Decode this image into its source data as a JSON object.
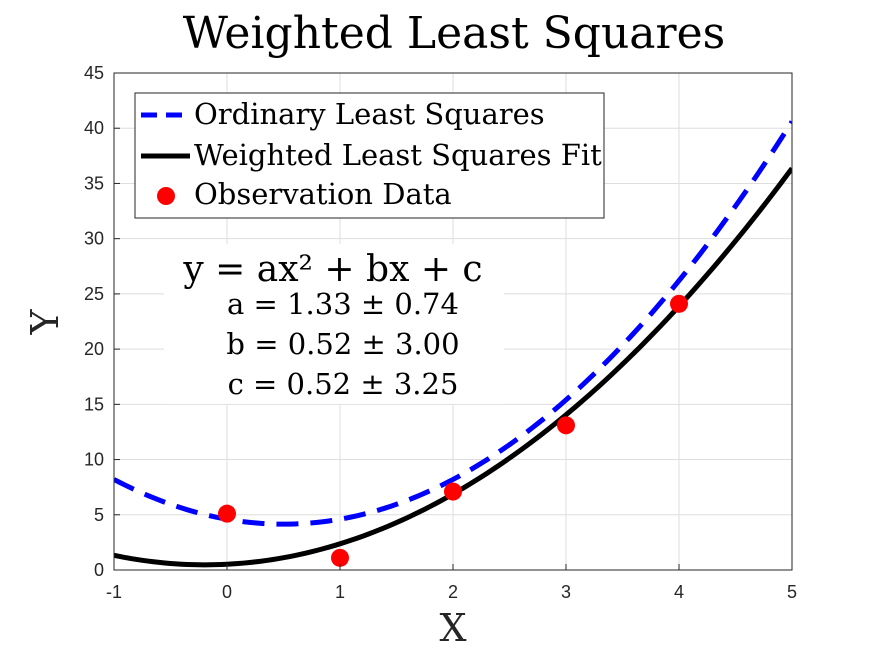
{
  "chart_data": {
    "type": "line",
    "title": "Weighted Least Squares",
    "xlabel": "X",
    "ylabel": "Y",
    "xlim": [
      -1,
      5
    ],
    "ylim": [
      0,
      45
    ],
    "xticks": [
      "-1",
      "0",
      "1",
      "2",
      "3",
      "4",
      "5"
    ],
    "yticks": [
      "0",
      "5",
      "10",
      "15",
      "20",
      "25",
      "30",
      "35",
      "40",
      "45"
    ],
    "grid": true,
    "legend_position": "top-left",
    "series": [
      {
        "name": "Ordinary Least Squares",
        "kind": "line",
        "style": "dashed",
        "color": "#0000ff",
        "coefficients": {
          "a": 1.8,
          "b": -1.8,
          "c": 4.6
        },
        "x_range": [
          -1,
          5
        ]
      },
      {
        "name": "Weighted Least Squares Fit",
        "kind": "line",
        "style": "solid",
        "color": "#000000",
        "coefficients": {
          "a": 1.33,
          "b": 0.52,
          "c": 0.52
        },
        "x_range": [
          -1,
          5
        ]
      },
      {
        "name": "Observation Data",
        "kind": "scatter",
        "color": "#ff0000",
        "x": [
          0,
          1,
          2,
          3,
          4
        ],
        "y": [
          5.1,
          1.1,
          7.1,
          13.1,
          24.1
        ]
      }
    ],
    "annotation": {
      "equation": "y = ax² + bx + c",
      "lines": [
        "a = 1.33 ± 0.74",
        "b = 0.52 ± 3.00",
        "c = 0.52 ± 3.25"
      ]
    }
  }
}
